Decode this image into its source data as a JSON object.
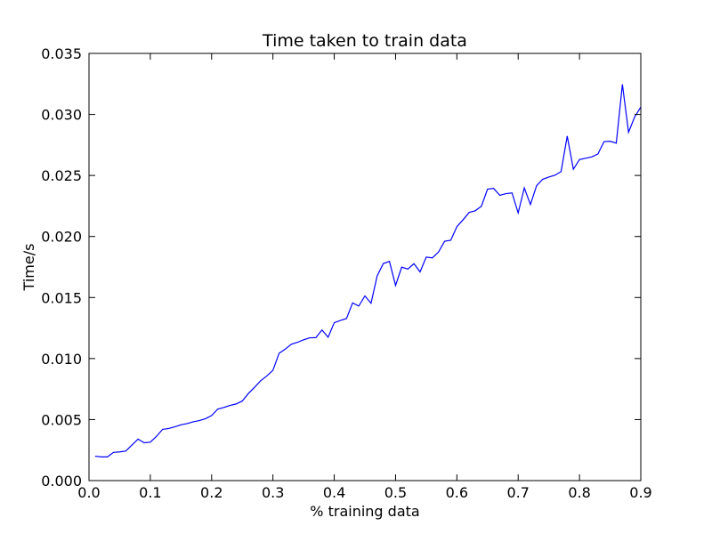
{
  "chart_data": {
    "type": "line",
    "title": "Time taken to train data",
    "xlabel": "% training data",
    "ylabel": "Time/s",
    "xlim": [
      0.0,
      0.9
    ],
    "ylim": [
      0.0,
      0.035
    ],
    "grid": false,
    "legend": "none",
    "line_color": "#0000ff",
    "xticks": [
      0.0,
      0.1,
      0.2,
      0.3,
      0.4,
      0.5,
      0.6,
      0.7,
      0.8,
      0.9
    ],
    "xtick_labels": [
      "0.0",
      "0.1",
      "0.2",
      "0.3",
      "0.4",
      "0.5",
      "0.6",
      "0.7",
      "0.8",
      "0.9"
    ],
    "yticks": [
      0.0,
      0.005,
      0.01,
      0.015,
      0.02,
      0.025,
      0.03,
      0.035
    ],
    "ytick_labels": [
      "0.000",
      "0.005",
      "0.010",
      "0.015",
      "0.020",
      "0.025",
      "0.030",
      "0.035"
    ],
    "series": [
      {
        "x": [
          0.01,
          0.02,
          0.03,
          0.04,
          0.05,
          0.06,
          0.07,
          0.08,
          0.09,
          0.1,
          0.11,
          0.12,
          0.13,
          0.14,
          0.15,
          0.16,
          0.17,
          0.18,
          0.19,
          0.2,
          0.21,
          0.22,
          0.23,
          0.24,
          0.25,
          0.26,
          0.27,
          0.28,
          0.29,
          0.3,
          0.31,
          0.32,
          0.33,
          0.34,
          0.35,
          0.36,
          0.37,
          0.38,
          0.39,
          0.4,
          0.41,
          0.42,
          0.43,
          0.44,
          0.45,
          0.46,
          0.47,
          0.48,
          0.49,
          0.5,
          0.51,
          0.52,
          0.53,
          0.54,
          0.55,
          0.56,
          0.57,
          0.58,
          0.59,
          0.6,
          0.61,
          0.62,
          0.63,
          0.64,
          0.65,
          0.66,
          0.67,
          0.68,
          0.69,
          0.7,
          0.71,
          0.72,
          0.73,
          0.74,
          0.75,
          0.76,
          0.77,
          0.78,
          0.79,
          0.8,
          0.81,
          0.82,
          0.83,
          0.84,
          0.85,
          0.86,
          0.87,
          0.88,
          0.89,
          0.9
        ],
        "y": [
          0.002,
          0.00194,
          0.00194,
          0.00231,
          0.00235,
          0.00242,
          0.00291,
          0.0034,
          0.0031,
          0.00315,
          0.00362,
          0.0042,
          0.00427,
          0.00441,
          0.00457,
          0.00467,
          0.00482,
          0.00492,
          0.00507,
          0.00533,
          0.00586,
          0.00599,
          0.00616,
          0.00628,
          0.00652,
          0.00714,
          0.00764,
          0.00818,
          0.00857,
          0.00904,
          0.01043,
          0.01077,
          0.01117,
          0.01133,
          0.01153,
          0.0117,
          0.01171,
          0.01234,
          0.01175,
          0.01294,
          0.01312,
          0.01328,
          0.01456,
          0.0143,
          0.01513,
          0.01453,
          0.01677,
          0.01778,
          0.01796,
          0.01599,
          0.01749,
          0.01733,
          0.01777,
          0.0171,
          0.01831,
          0.01825,
          0.01872,
          0.01961,
          0.01969,
          0.0208,
          0.02136,
          0.02197,
          0.02211,
          0.02248,
          0.02388,
          0.02394,
          0.02337,
          0.02351,
          0.02357,
          0.02193,
          0.02398,
          0.02262,
          0.02416,
          0.02469,
          0.02487,
          0.02502,
          0.02532,
          0.02823,
          0.02551,
          0.0263,
          0.02641,
          0.02652,
          0.02676,
          0.02777,
          0.0278,
          0.02765,
          0.03246,
          0.02854,
          0.02979,
          0.0306
        ]
      }
    ]
  }
}
